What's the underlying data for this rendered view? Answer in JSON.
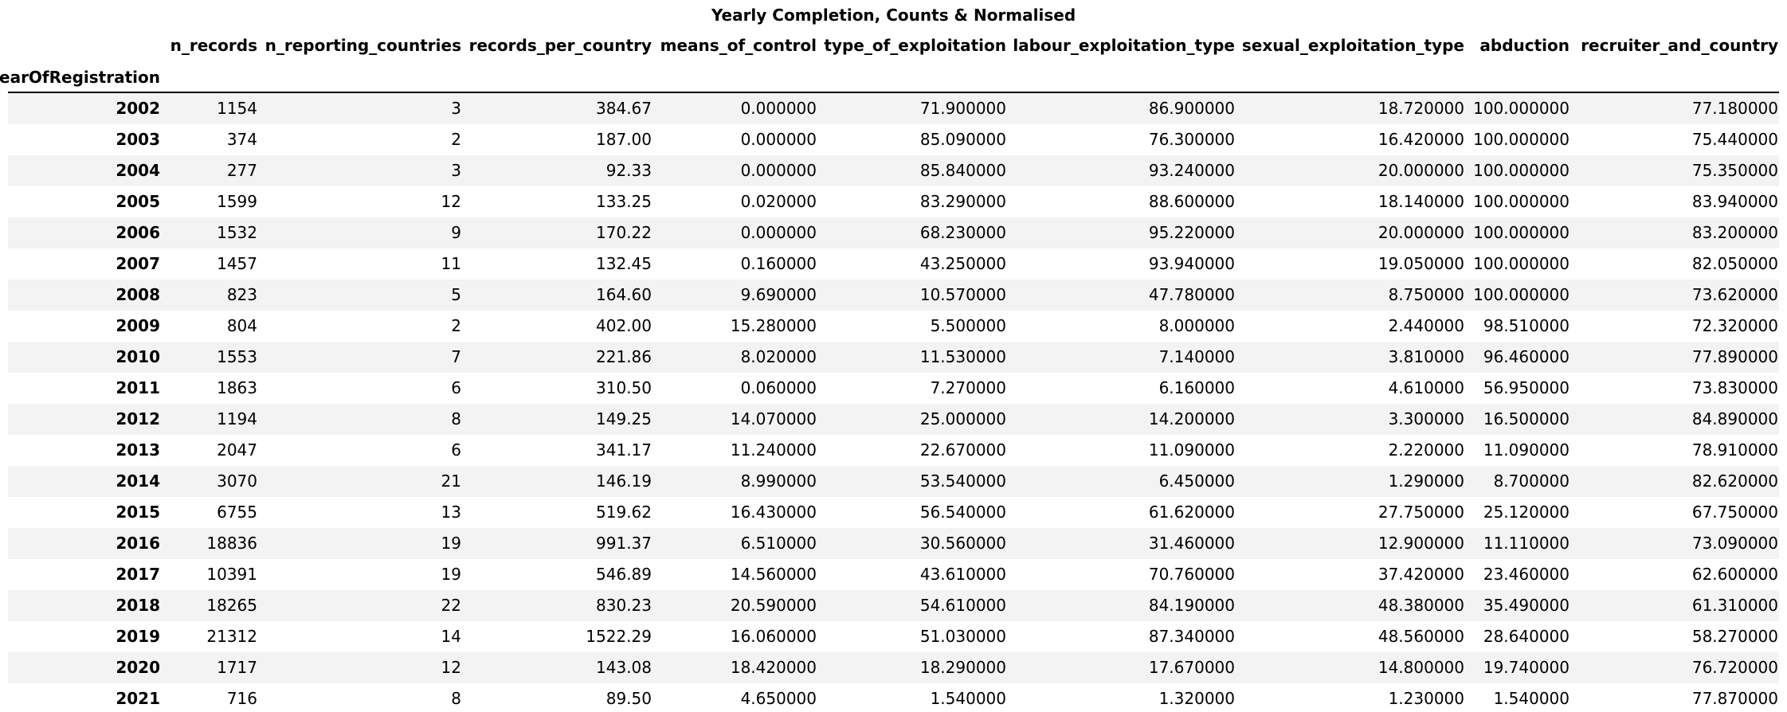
{
  "chart_data": {
    "type": "table",
    "title": "Yearly Completion, Counts & Normalised",
    "index_name": "yearOfRegistration",
    "columns": [
      "n_records",
      "n_reporting_countries",
      "records_per_country",
      "means_of_control",
      "type_of_exploitation",
      "labour_exploitation_type",
      "sexual_exploitation_type",
      "abduction",
      "recruiter_and_country"
    ],
    "rows": [
      {
        "index": "2002",
        "values": [
          "1154",
          "3",
          "384.67",
          "0.000000",
          "71.900000",
          "86.900000",
          "18.720000",
          "100.000000",
          "77.180000"
        ]
      },
      {
        "index": "2003",
        "values": [
          "374",
          "2",
          "187.00",
          "0.000000",
          "85.090000",
          "76.300000",
          "16.420000",
          "100.000000",
          "75.440000"
        ]
      },
      {
        "index": "2004",
        "values": [
          "277",
          "3",
          "92.33",
          "0.000000",
          "85.840000",
          "93.240000",
          "20.000000",
          "100.000000",
          "75.350000"
        ]
      },
      {
        "index": "2005",
        "values": [
          "1599",
          "12",
          "133.25",
          "0.020000",
          "83.290000",
          "88.600000",
          "18.140000",
          "100.000000",
          "83.940000"
        ]
      },
      {
        "index": "2006",
        "values": [
          "1532",
          "9",
          "170.22",
          "0.000000",
          "68.230000",
          "95.220000",
          "20.000000",
          "100.000000",
          "83.200000"
        ]
      },
      {
        "index": "2007",
        "values": [
          "1457",
          "11",
          "132.45",
          "0.160000",
          "43.250000",
          "93.940000",
          "19.050000",
          "100.000000",
          "82.050000"
        ]
      },
      {
        "index": "2008",
        "values": [
          "823",
          "5",
          "164.60",
          "9.690000",
          "10.570000",
          "47.780000",
          "8.750000",
          "100.000000",
          "73.620000"
        ]
      },
      {
        "index": "2009",
        "values": [
          "804",
          "2",
          "402.00",
          "15.280000",
          "5.500000",
          "8.000000",
          "2.440000",
          "98.510000",
          "72.320000"
        ]
      },
      {
        "index": "2010",
        "values": [
          "1553",
          "7",
          "221.86",
          "8.020000",
          "11.530000",
          "7.140000",
          "3.810000",
          "96.460000",
          "77.890000"
        ]
      },
      {
        "index": "2011",
        "values": [
          "1863",
          "6",
          "310.50",
          "0.060000",
          "7.270000",
          "6.160000",
          "4.610000",
          "56.950000",
          "73.830000"
        ]
      },
      {
        "index": "2012",
        "values": [
          "1194",
          "8",
          "149.25",
          "14.070000",
          "25.000000",
          "14.200000",
          "3.300000",
          "16.500000",
          "84.890000"
        ]
      },
      {
        "index": "2013",
        "values": [
          "2047",
          "6",
          "341.17",
          "11.240000",
          "22.670000",
          "11.090000",
          "2.220000",
          "11.090000",
          "78.910000"
        ]
      },
      {
        "index": "2014",
        "values": [
          "3070",
          "21",
          "146.19",
          "8.990000",
          "53.540000",
          "6.450000",
          "1.290000",
          "8.700000",
          "82.620000"
        ]
      },
      {
        "index": "2015",
        "values": [
          "6755",
          "13",
          "519.62",
          "16.430000",
          "56.540000",
          "61.620000",
          "27.750000",
          "25.120000",
          "67.750000"
        ]
      },
      {
        "index": "2016",
        "values": [
          "18836",
          "19",
          "991.37",
          "6.510000",
          "30.560000",
          "31.460000",
          "12.900000",
          "11.110000",
          "73.090000"
        ]
      },
      {
        "index": "2017",
        "values": [
          "10391",
          "19",
          "546.89",
          "14.560000",
          "43.610000",
          "70.760000",
          "37.420000",
          "23.460000",
          "62.600000"
        ]
      },
      {
        "index": "2018",
        "values": [
          "18265",
          "22",
          "830.23",
          "20.590000",
          "54.610000",
          "84.190000",
          "48.380000",
          "35.490000",
          "61.310000"
        ]
      },
      {
        "index": "2019",
        "values": [
          "21312",
          "14",
          "1522.29",
          "16.060000",
          "51.030000",
          "87.340000",
          "48.560000",
          "28.640000",
          "58.270000"
        ]
      },
      {
        "index": "2020",
        "values": [
          "1717",
          "12",
          "143.08",
          "18.420000",
          "18.290000",
          "17.670000",
          "14.800000",
          "19.740000",
          "76.720000"
        ]
      },
      {
        "index": "2021",
        "values": [
          "716",
          "8",
          "89.50",
          "4.650000",
          "1.540000",
          "1.320000",
          "1.230000",
          "1.540000",
          "77.870000"
        ]
      }
    ]
  }
}
